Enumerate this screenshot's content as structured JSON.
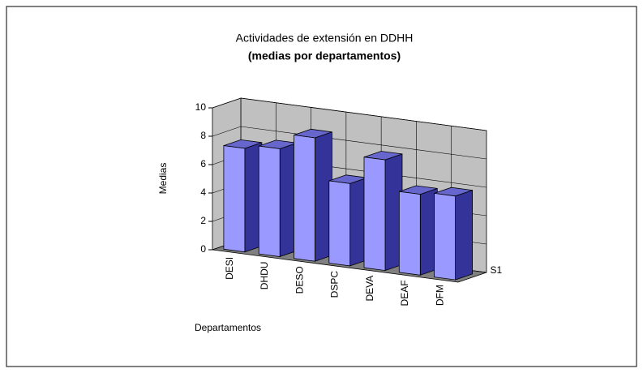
{
  "chart_data": {
    "type": "bar3d",
    "title": "Actividades de extensión en DDHH",
    "subtitle": "(medias por departamentos)",
    "y_label": "Medias",
    "x_label": "Departamentos",
    "categories": [
      "DESI",
      "DHDU",
      "DESO",
      "DSPC",
      "DEVA",
      "DEAF",
      "DFM"
    ],
    "series": [
      {
        "name": "S1",
        "color": "#9999ff",
        "values": [
          7.3,
          7.6,
          8.7,
          5.8,
          7.8,
          5.7,
          5.9
        ]
      }
    ],
    "ylim": [
      0,
      10
    ],
    "yticks": [
      0,
      2,
      4,
      6,
      8,
      10
    ],
    "grid": true
  }
}
